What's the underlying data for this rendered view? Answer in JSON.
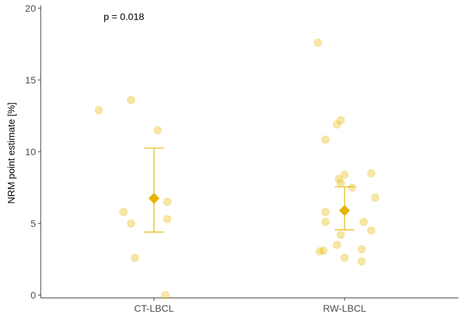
{
  "chart_data": {
    "type": "scatter",
    "title": "",
    "xlabel": "",
    "ylabel": "NRM point estimate [%]",
    "ylim": [
      0,
      20
    ],
    "yticks": [
      0,
      5,
      10,
      15,
      20
    ],
    "categories": [
      "CT-LBCL",
      "RW-LBCL"
    ],
    "annotation": "p = 0.018",
    "grid": false,
    "colors": {
      "point": "#e8b800",
      "summary": "#e6b400",
      "axis": "#333333"
    },
    "series": [
      {
        "category": "CT-LBCL",
        "points": [
          {
            "x": 1.06,
            "y": 0.0
          },
          {
            "x": 0.9,
            "y": 2.6
          },
          {
            "x": 0.88,
            "y": 5.0
          },
          {
            "x": 1.07,
            "y": 5.3
          },
          {
            "x": 0.84,
            "y": 5.8
          },
          {
            "x": 1.07,
            "y": 6.5
          },
          {
            "x": 1.02,
            "y": 11.5
          },
          {
            "x": 0.71,
            "y": 12.9
          },
          {
            "x": 0.88,
            "y": 13.6
          }
        ],
        "summary": {
          "mean": 6.75,
          "lower": 4.4,
          "upper": 10.25
        }
      },
      {
        "category": "RW-LBCL",
        "points": [
          {
            "x": 1.87,
            "y": 3.05
          },
          {
            "x": 1.89,
            "y": 3.1
          },
          {
            "x": 2.09,
            "y": 3.2
          },
          {
            "x": 1.96,
            "y": 3.5
          },
          {
            "x": 2.0,
            "y": 2.6
          },
          {
            "x": 2.09,
            "y": 2.35
          },
          {
            "x": 1.98,
            "y": 4.2
          },
          {
            "x": 2.14,
            "y": 4.5
          },
          {
            "x": 1.9,
            "y": 5.1
          },
          {
            "x": 2.1,
            "y": 5.1
          },
          {
            "x": 1.9,
            "y": 5.8
          },
          {
            "x": 2.16,
            "y": 6.8
          },
          {
            "x": 2.04,
            "y": 7.5
          },
          {
            "x": 1.98,
            "y": 7.8
          },
          {
            "x": 1.97,
            "y": 8.1
          },
          {
            "x": 2.0,
            "y": 8.4
          },
          {
            "x": 2.14,
            "y": 8.5
          },
          {
            "x": 1.9,
            "y": 10.85
          },
          {
            "x": 1.96,
            "y": 11.9
          },
          {
            "x": 1.98,
            "y": 12.2
          },
          {
            "x": 1.86,
            "y": 17.6
          }
        ],
        "summary": {
          "mean": 5.9,
          "lower": 4.55,
          "upper": 7.55
        }
      }
    ]
  }
}
